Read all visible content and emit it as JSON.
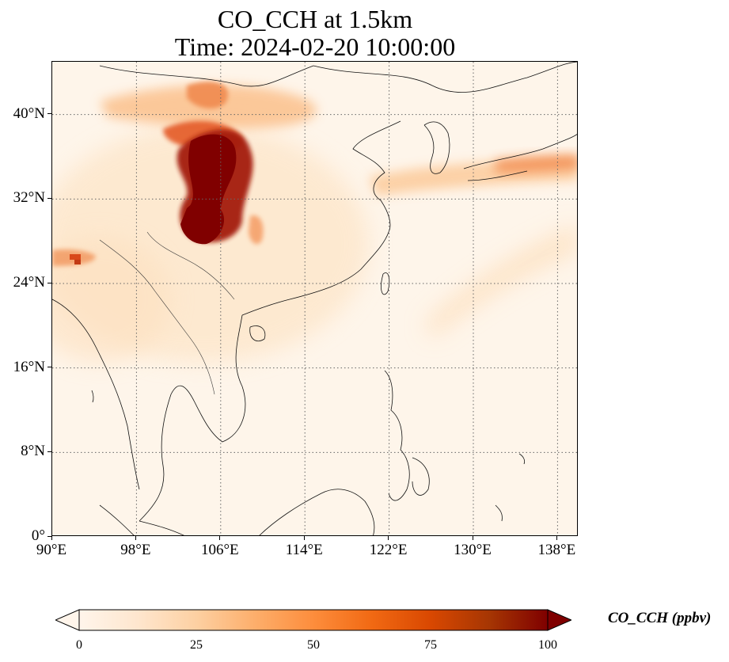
{
  "title": {
    "line1": "CO_CCH at 1.5km",
    "line2": "Time: 2024-02-20 10:00:00"
  },
  "map": {
    "variable": "CO_CCH",
    "lon_range": [
      90,
      140
    ],
    "lat_range": [
      0,
      45
    ],
    "lon_ticks": [
      {
        "value": 90,
        "label": "90°E"
      },
      {
        "value": 98,
        "label": "98°E"
      },
      {
        "value": 106,
        "label": "106°E"
      },
      {
        "value": 114,
        "label": "114°E"
      },
      {
        "value": 122,
        "label": "122°E"
      },
      {
        "value": 130,
        "label": "130°E"
      },
      {
        "value": 138,
        "label": "138°E"
      }
    ],
    "lat_ticks": [
      {
        "value": 0,
        "label": "0°"
      },
      {
        "value": 8,
        "label": "8°N"
      },
      {
        "value": 16,
        "label": "16°N"
      },
      {
        "value": 24,
        "label": "24°N"
      },
      {
        "value": 32,
        "label": "32°N"
      },
      {
        "value": 40,
        "label": "40°N"
      }
    ],
    "gridlines": true,
    "gridline_style": "dotted"
  },
  "colorbar": {
    "label": "CO_CCH (ppbv)",
    "ticks": [
      "0",
      "25",
      "50",
      "75",
      "100"
    ],
    "range": [
      0,
      100
    ],
    "extend": "both",
    "colormap": [
      "#fff5eb",
      "#fee6ce",
      "#fdd0a2",
      "#fdae6b",
      "#fd8d3c",
      "#f16913",
      "#d94801",
      "#a63603",
      "#7f0000"
    ]
  },
  "plumes": [
    {
      "name": "sichuan-core",
      "color": "#800000"
    },
    {
      "name": "north-plume",
      "color": "#d94801"
    },
    {
      "name": "korea-japan-band",
      "color": "#fdae6b"
    }
  ]
}
